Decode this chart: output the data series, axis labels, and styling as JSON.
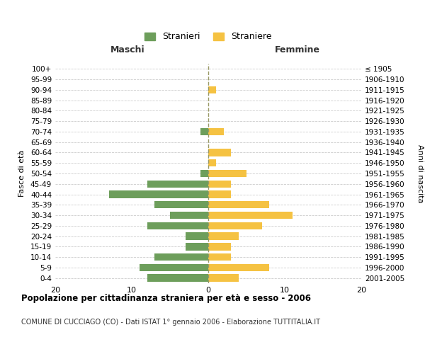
{
  "age_groups": [
    "0-4",
    "5-9",
    "10-14",
    "15-19",
    "20-24",
    "25-29",
    "30-34",
    "35-39",
    "40-44",
    "45-49",
    "50-54",
    "55-59",
    "60-64",
    "65-69",
    "70-74",
    "75-79",
    "80-84",
    "85-89",
    "90-94",
    "95-99",
    "100+"
  ],
  "birth_years": [
    "2001-2005",
    "1996-2000",
    "1991-1995",
    "1986-1990",
    "1981-1985",
    "1976-1980",
    "1971-1975",
    "1966-1970",
    "1961-1965",
    "1956-1960",
    "1951-1955",
    "1946-1950",
    "1941-1945",
    "1936-1940",
    "1931-1935",
    "1926-1930",
    "1921-1925",
    "1916-1920",
    "1911-1915",
    "1906-1910",
    "≤ 1905"
  ],
  "maschi": [
    8,
    9,
    7,
    3,
    3,
    8,
    5,
    7,
    13,
    8,
    1,
    0,
    0,
    0,
    1,
    0,
    0,
    0,
    0,
    0,
    0
  ],
  "femmine": [
    4,
    8,
    3,
    3,
    4,
    7,
    11,
    8,
    3,
    3,
    5,
    1,
    3,
    0,
    2,
    0,
    0,
    0,
    1,
    0,
    0
  ],
  "color_maschi": "#6d9e5b",
  "color_femmine": "#f5c242",
  "background_color": "#ffffff",
  "grid_color": "#cccccc",
  "title": "Popolazione per cittadinanza straniera per età e sesso - 2006",
  "subtitle": "COMUNE DI CUCCIAGO (CO) - Dati ISTAT 1° gennaio 2006 - Elaborazione TUTTITALIA.IT",
  "xlabel_left": "Maschi",
  "xlabel_right": "Femmine",
  "ylabel_left": "Fasce di età",
  "ylabel_right": "Anni di nascita",
  "legend_maschi": "Stranieri",
  "legend_femmine": "Straniere",
  "xlim": 20,
  "bar_height": 0.7
}
